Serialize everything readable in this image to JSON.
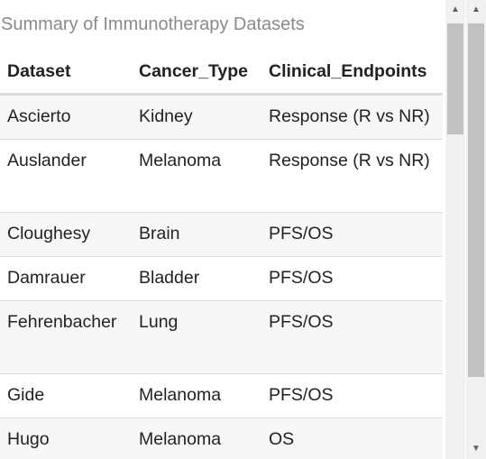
{
  "caption": "Summary of Immunotherapy Datasets",
  "columns": {
    "dataset": "Dataset",
    "cancer_type": "Cancer_Type",
    "clinical_endpoints": "Clinical_Endpoints"
  },
  "rows": [
    {
      "dataset": "Ascierto",
      "cancer_type": "Kidney",
      "clinical_endpoints": "Response (R vs NR)"
    },
    {
      "dataset": "Auslander",
      "cancer_type": "Melanoma",
      "clinical_endpoints": "Response (R vs NR)"
    },
    {
      "dataset": "Cloughesy",
      "cancer_type": "Brain",
      "clinical_endpoints": "PFS/OS"
    },
    {
      "dataset": "Damrauer",
      "cancer_type": "Bladder",
      "clinical_endpoints": "PFS/OS"
    },
    {
      "dataset": "Fehrenbacher",
      "cancer_type": "Lung",
      "clinical_endpoints": "PFS/OS"
    },
    {
      "dataset": "Gide",
      "cancer_type": "Melanoma",
      "clinical_endpoints": "PFS/OS"
    },
    {
      "dataset": "Hugo",
      "cancer_type": "Melanoma",
      "clinical_endpoints": "OS"
    }
  ],
  "scrollbar": {
    "up_icon": "▲",
    "down_icon": "▼"
  }
}
